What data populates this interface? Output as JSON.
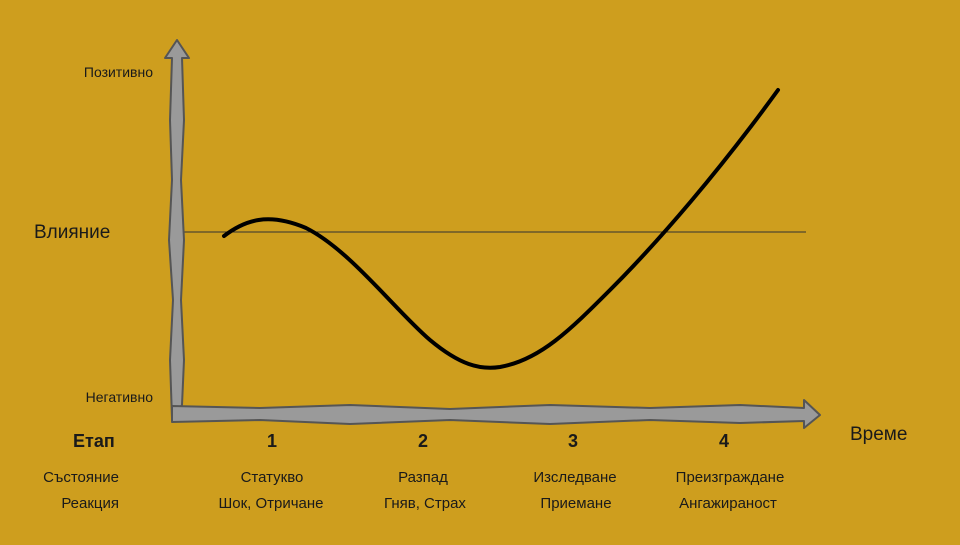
{
  "colors": {
    "background": "#CE9E1E",
    "axis_fill": "#9A9A9A",
    "axis_outline": "#555555",
    "curve": "#000000",
    "baseline": "#333333"
  },
  "y_axis": {
    "top_label": "Позитивно",
    "bottom_label": "Негативно",
    "middle_label": "Влияние"
  },
  "x_axis": {
    "label": "Време",
    "stage_header": "Етап"
  },
  "rows": {
    "state_header": "Състояние",
    "reaction_header": "Реакция"
  },
  "stages": [
    {
      "number": "1",
      "state": "Статукво",
      "reaction": "Шок, Отричане"
    },
    {
      "number": "2",
      "state": "Разпад",
      "reaction": "Гняв, Страх"
    },
    {
      "number": "3",
      "state": "Изследване",
      "reaction": "Приемане"
    },
    {
      "number": "4",
      "state": "Преизграждане",
      "reaction": "Ангажираност"
    }
  ],
  "chart_data": {
    "type": "line",
    "x_categories": [
      "1",
      "2",
      "3",
      "4"
    ],
    "curve_shape": "starts slightly above baseline, small peak in stage 1, falls to minimum near stage 2-3 boundary, rises steeply through stage 4",
    "grid": false
  }
}
